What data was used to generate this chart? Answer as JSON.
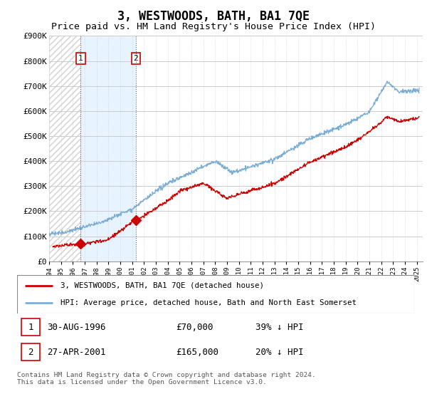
{
  "title": "3, WESTWOODS, BATH, BA1 7QE",
  "subtitle": "Price paid vs. HM Land Registry's House Price Index (HPI)",
  "ylim": [
    0,
    900000
  ],
  "yticks": [
    0,
    100000,
    200000,
    300000,
    400000,
    500000,
    600000,
    700000,
    800000,
    900000
  ],
  "ytick_labels": [
    "£0",
    "£100K",
    "£200K",
    "£300K",
    "£400K",
    "£500K",
    "£600K",
    "£700K",
    "£800K",
    "£900K"
  ],
  "xlim_start": 1994.0,
  "xlim_end": 2025.5,
  "hpi_color": "#7aadd4",
  "price_color": "#cc0000",
  "sale1_x": 1996.667,
  "sale1_y": 70000,
  "sale2_x": 2001.32,
  "sale2_y": 165000,
  "annotation1_date": "30-AUG-1996",
  "annotation1_price": "£70,000",
  "annotation1_hpi": "39% ↓ HPI",
  "annotation2_date": "27-APR-2001",
  "annotation2_price": "£165,000",
  "annotation2_hpi": "20% ↓ HPI",
  "legend_line1": "3, WESTWOODS, BATH, BA1 7QE (detached house)",
  "legend_line2": "HPI: Average price, detached house, Bath and North East Somerset",
  "copyright_text": "Contains HM Land Registry data © Crown copyright and database right 2024.\nThis data is licensed under the Open Government Licence v3.0.",
  "grid_color": "#cccccc",
  "hatch_color": "#d0d0d0",
  "light_blue_fill": "#ddeeff",
  "title_fontsize": 12,
  "subtitle_fontsize": 9.5,
  "tick_fontsize": 8
}
